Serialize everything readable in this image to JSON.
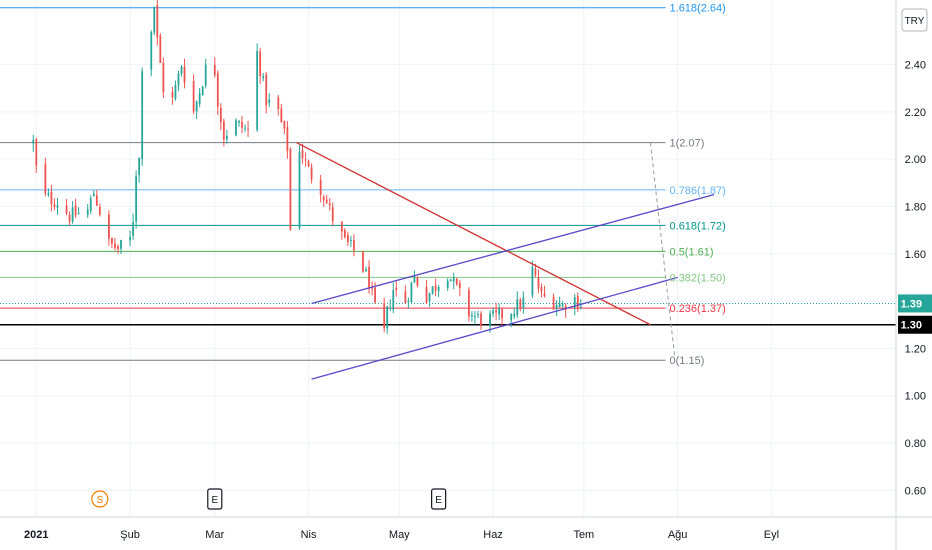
{
  "chart_data": {
    "type": "candlestick",
    "currency_badge": "TRY",
    "y_axis": {
      "ticks": [
        "2.40",
        "2.20",
        "2.00",
        "1.80",
        "1.60",
        "1.40",
        "1.20",
        "1.00",
        "0.80",
        "0.60"
      ],
      "tick_values": [
        2.4,
        2.2,
        2.0,
        1.8,
        1.6,
        1.4,
        1.2,
        1.0,
        0.8,
        0.6
      ],
      "range": [
        0.5,
        2.66
      ]
    },
    "x_axis": {
      "labels": [
        "2021",
        "Şub",
        "Mar",
        "Nis",
        "May",
        "Haz",
        "Tem",
        "Ağu",
        "Eyl"
      ],
      "dates": [
        "2021-01-01",
        "2021-02-01",
        "2021-03-01",
        "2021-04-01",
        "2021-05-01",
        "2021-06-01",
        "2021-07-01",
        "2021-08-01",
        "2021-09-01"
      ],
      "range": [
        "2020-12-20",
        "2021-09-25"
      ]
    },
    "price_labels": [
      {
        "text": "1.39",
        "value": 1.39,
        "color": "#26a69a"
      },
      {
        "text": "1.30",
        "value": 1.3,
        "color": "#000000"
      }
    ],
    "horizontal_lines": [
      {
        "value": 1.39,
        "style": "dotted",
        "color": "#26a69a"
      },
      {
        "value": 1.3,
        "style": "solid",
        "color": "#000000"
      }
    ],
    "fibonacci": {
      "start_date": "2020-12-20",
      "end_date": "2021-07-28",
      "levels": [
        {
          "label": "1.618(2.64)",
          "value": 2.64,
          "color": "#2196f3"
        },
        {
          "label": "1(2.07)",
          "value": 2.07,
          "color": "#787b86"
        },
        {
          "label": "0.786(1.87)",
          "value": 1.87,
          "color": "#64b5f6"
        },
        {
          "label": "0.618(1.72)",
          "value": 1.72,
          "color": "#009688"
        },
        {
          "label": "0.5(1.61)",
          "value": 1.61,
          "color": "#4caf50"
        },
        {
          "label": "0.382(1.50)",
          "value": 1.5,
          "color": "#81c784"
        },
        {
          "label": "0.236(1.37)",
          "value": 1.37,
          "color": "#f23645"
        },
        {
          "label": "0(1.15)",
          "value": 1.15,
          "color": "#787b86"
        }
      ]
    },
    "trend_lines": [
      {
        "color": "#d32f2f",
        "points": [
          [
            "2021-03-28",
            2.07
          ],
          [
            "2021-07-23",
            1.3
          ]
        ]
      },
      {
        "color": "#5b48c8",
        "points": [
          [
            "2021-04-02",
            1.39
          ],
          [
            "2021-08-13",
            1.85
          ]
        ]
      },
      {
        "color": "#5b48c8",
        "points": [
          [
            "2021-04-02",
            1.07
          ],
          [
            "2021-08-01",
            1.5
          ]
        ]
      }
    ],
    "dashed_lines": [
      {
        "color": "#9e9e9e",
        "points": [
          [
            "2021-07-23",
            2.07
          ],
          [
            "2021-07-31",
            1.17
          ]
        ]
      }
    ],
    "event_markers": [
      {
        "text": "S",
        "date": "2021-01-22",
        "color": "#f57c00",
        "shape": "circle"
      },
      {
        "text": "E",
        "date": "2021-03-01",
        "color": "#131722",
        "shape": "square"
      },
      {
        "text": "E",
        "date": "2021-05-14",
        "color": "#131722",
        "shape": "square"
      }
    ],
    "price_path": [
      [
        "2020-12-31",
        2.07
      ],
      [
        "2021-01-02",
        1.85
      ],
      [
        "2021-01-08",
        1.82
      ],
      [
        "2021-01-12",
        1.76
      ],
      [
        "2021-01-18",
        1.78
      ],
      [
        "2021-01-20",
        1.86
      ],
      [
        "2021-01-22",
        1.78
      ],
      [
        "2021-01-24",
        1.65
      ],
      [
        "2021-01-28",
        1.62
      ],
      [
        "2021-02-01",
        1.66
      ],
      [
        "2021-02-02",
        1.75
      ],
      [
        "2021-02-03",
        1.95
      ],
      [
        "2021-02-04",
        2.0
      ],
      [
        "2021-02-05",
        2.4
      ],
      [
        "2021-02-07",
        2.3
      ],
      [
        "2021-02-08",
        2.55
      ],
      [
        "2021-02-09",
        2.65
      ],
      [
        "2021-02-10",
        2.5
      ],
      [
        "2021-02-12",
        2.3
      ],
      [
        "2021-02-15",
        2.25
      ],
      [
        "2021-02-18",
        2.4
      ],
      [
        "2021-02-22",
        2.2
      ],
      [
        "2021-02-26",
        2.38
      ],
      [
        "2021-02-28",
        2.5
      ],
      [
        "2021-03-02",
        2.25
      ],
      [
        "2021-03-04",
        2.1
      ],
      [
        "2021-03-08",
        2.15
      ],
      [
        "2021-03-12",
        2.12
      ],
      [
        "2021-03-15",
        2.45
      ],
      [
        "2021-03-18",
        2.25
      ],
      [
        "2021-03-22",
        2.2
      ],
      [
        "2021-03-25",
        2.05
      ],
      [
        "2021-03-26",
        1.7
      ],
      [
        "2021-03-27",
        1.95
      ],
      [
        "2021-03-29",
        2.05
      ],
      [
        "2021-04-01",
        1.95
      ],
      [
        "2021-04-05",
        1.88
      ],
      [
        "2021-04-09",
        1.75
      ],
      [
        "2021-04-13",
        1.65
      ],
      [
        "2021-04-17",
        1.6
      ],
      [
        "2021-04-21",
        1.48
      ],
      [
        "2021-04-23",
        1.36
      ],
      [
        "2021-04-25",
        1.18
      ],
      [
        "2021-04-27",
        1.35
      ],
      [
        "2021-04-29",
        1.45
      ],
      [
        "2021-05-03",
        1.4
      ],
      [
        "2021-05-06",
        1.5
      ],
      [
        "2021-05-10",
        1.42
      ],
      [
        "2021-05-14",
        1.48
      ],
      [
        "2021-05-17",
        1.52
      ],
      [
        "2021-05-20",
        1.45
      ],
      [
        "2021-05-24",
        1.35
      ],
      [
        "2021-05-28",
        1.32
      ],
      [
        "2021-06-02",
        1.33
      ],
      [
        "2021-06-07",
        1.36
      ],
      [
        "2021-06-11",
        1.4
      ],
      [
        "2021-06-14",
        1.53
      ],
      [
        "2021-06-17",
        1.42
      ],
      [
        "2021-06-21",
        1.4
      ],
      [
        "2021-06-24",
        1.38
      ],
      [
        "2021-06-27",
        1.42
      ],
      [
        "2021-06-30",
        1.39
      ]
    ]
  }
}
